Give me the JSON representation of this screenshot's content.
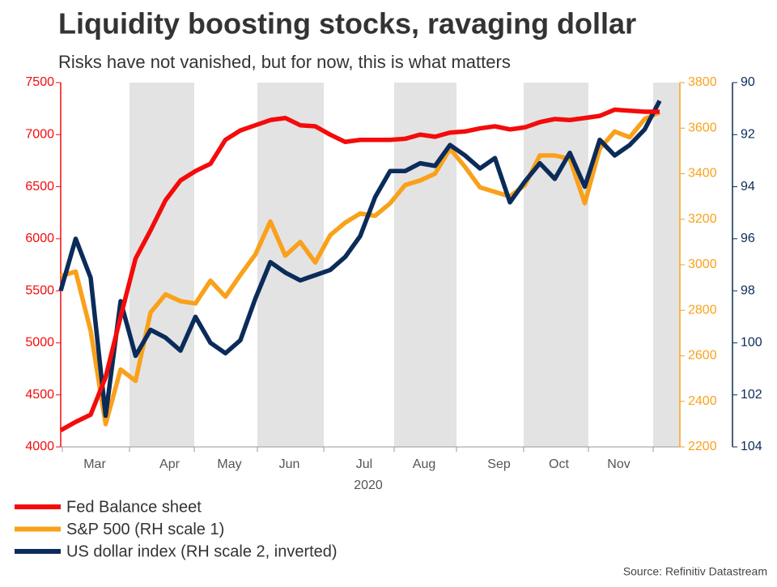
{
  "chart_data": {
    "type": "line",
    "title": "Liquidity boosting stocks, ravaging dollar",
    "subtitle": "Risks have not vanished, but for now, this is what matters",
    "source": "Source: Refinitiv Datastream",
    "x_label": "2020",
    "categories": [
      null,
      null,
      "Mar",
      null,
      null,
      null,
      null,
      "Apr",
      null,
      null,
      null,
      "May",
      null,
      null,
      null,
      "Jun",
      null,
      null,
      null,
      null,
      "Jul",
      null,
      null,
      null,
      "Aug",
      null,
      null,
      null,
      null,
      "Sep",
      null,
      null,
      null,
      "Oct",
      null,
      null,
      null,
      "Nov",
      null,
      null,
      null
    ],
    "ylim": [
      4000,
      7500
    ],
    "yticks": [
      4000,
      4500,
      5000,
      5500,
      6000,
      6500,
      7000,
      7500
    ],
    "y2lim": [
      2200,
      3800
    ],
    "y2ticks": [
      2200,
      2400,
      2600,
      2800,
      3000,
      3200,
      3400,
      3600,
      3800
    ],
    "y3lim": [
      104,
      90
    ],
    "y3ticks": [
      90,
      92,
      94,
      96,
      98,
      100,
      102,
      104
    ],
    "series": [
      {
        "name": "Fed Balance sheet",
        "color": "#f40b0b",
        "axis": "y",
        "values": [
          4160,
          4240,
          4310,
          4670,
          5250,
          5810,
          6080,
          6370,
          6560,
          6650,
          6720,
          6950,
          7040,
          7090,
          7140,
          7160,
          7090,
          7080,
          7000,
          6930,
          6950,
          6950,
          6950,
          6960,
          7000,
          6980,
          7020,
          7030,
          7060,
          7080,
          7050,
          7070,
          7120,
          7150,
          7140,
          7160,
          7180,
          7240,
          7230,
          7220,
          7220
        ]
      },
      {
        "name": "S&P 500 (RH scale 1)",
        "color": "#f9a11b",
        "axis": "y2",
        "values": [
          2950,
          2970,
          2710,
          2300,
          2540,
          2490,
          2790,
          2870,
          2840,
          2830,
          2930,
          2860,
          2955,
          3045,
          3190,
          3040,
          3100,
          3010,
          3130,
          3185,
          3225,
          3215,
          3270,
          3350,
          3370,
          3400,
          3510,
          3430,
          3340,
          3320,
          3300,
          3350,
          3480,
          3480,
          3465,
          3270,
          3510,
          3585,
          3560,
          3640,
          3670
        ]
      },
      {
        "name": "US dollar index (RH scale 2, inverted)",
        "color": "#0b2c5a",
        "axis": "y3",
        "values": [
          98.0,
          96.0,
          97.5,
          102.8,
          98.4,
          100.5,
          99.5,
          99.8,
          100.3,
          99.0,
          100.0,
          100.4,
          99.9,
          98.3,
          96.9,
          97.3,
          97.6,
          97.4,
          97.2,
          96.7,
          95.9,
          94.4,
          93.4,
          93.4,
          93.1,
          93.2,
          92.4,
          92.8,
          93.3,
          92.9,
          94.6,
          93.8,
          93.1,
          93.7,
          92.7,
          94.0,
          92.2,
          92.8,
          92.4,
          91.8,
          90.7
        ]
      }
    ]
  }
}
